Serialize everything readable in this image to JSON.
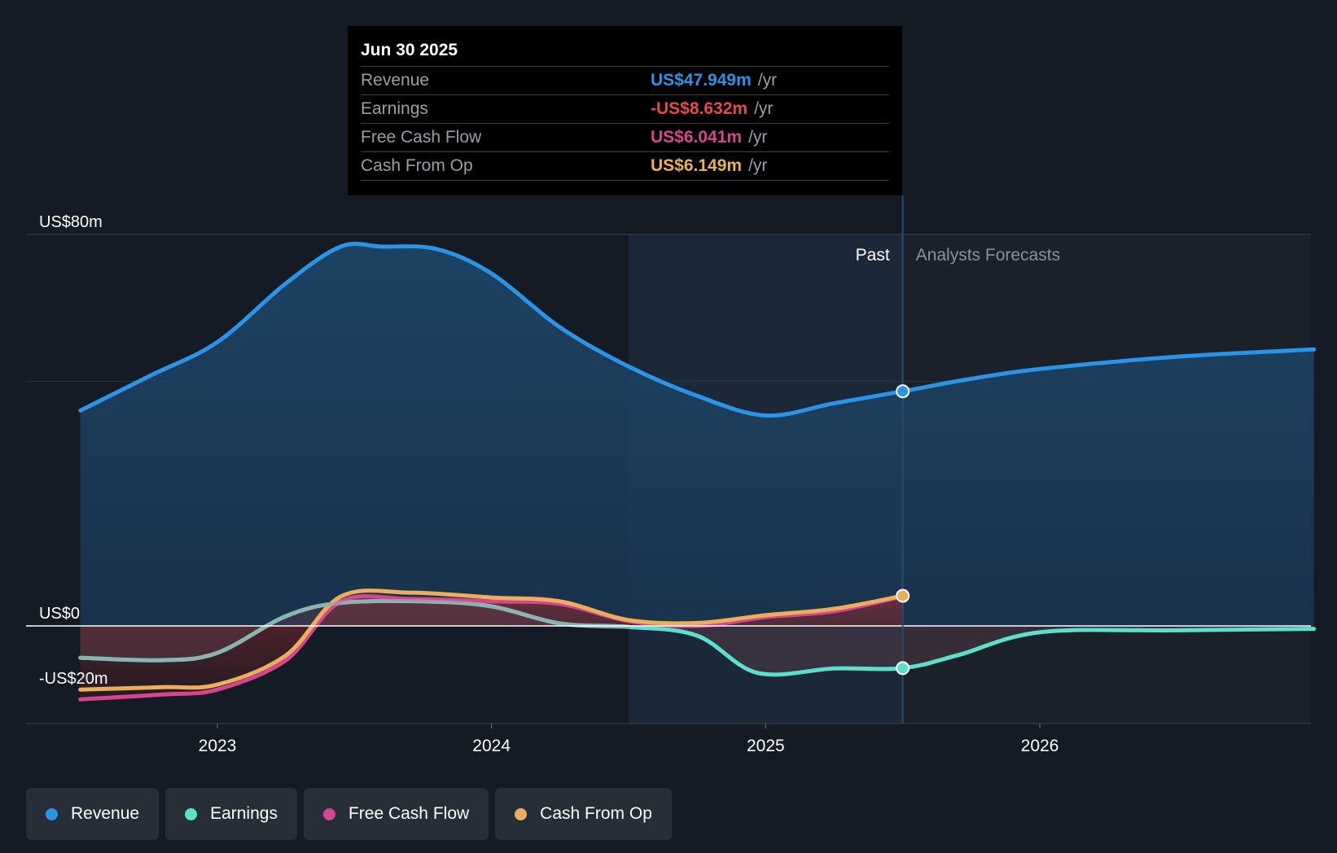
{
  "chart_data": {
    "type": "area",
    "y_axis_labels": [
      "US$80m",
      "US$0",
      "-US$20m"
    ],
    "ylim": [
      -20,
      80
    ],
    "x_ticks": [
      "2023",
      "2024",
      "2025",
      "2026"
    ],
    "x_tick_values": [
      2023.0,
      2024.0,
      2025.0,
      2026.0
    ],
    "past_label": "Past",
    "forecast_label": "Analysts Forecasts",
    "divider_x": 2025.5,
    "highlight_start_x": 2024.5,
    "series": [
      {
        "name": "Revenue",
        "color": "#2a95e6",
        "fill": "area",
        "points": [
          [
            2022.5,
            44
          ],
          [
            2022.75,
            51
          ],
          [
            2023.0,
            58
          ],
          [
            2023.25,
            70
          ],
          [
            2023.45,
            77.5
          ],
          [
            2023.6,
            77.5
          ],
          [
            2023.8,
            77
          ],
          [
            2024.0,
            72
          ],
          [
            2024.25,
            61
          ],
          [
            2024.5,
            53
          ],
          [
            2024.75,
            47
          ],
          [
            2025.0,
            43
          ],
          [
            2025.25,
            45.5
          ],
          [
            2025.5,
            47.949
          ]
        ],
        "forecast_points": [
          [
            2025.5,
            47.949
          ],
          [
            2025.75,
            50.5
          ],
          [
            2026.0,
            52.5
          ],
          [
            2026.5,
            55
          ],
          [
            2027.0,
            56.5
          ]
        ]
      },
      {
        "name": "Earnings",
        "color": "#5ce0cc",
        "fill": "none",
        "points": [
          [
            2022.5,
            -6.5
          ],
          [
            2022.8,
            -7
          ],
          [
            2023.0,
            -5.5
          ],
          [
            2023.25,
            2
          ],
          [
            2023.45,
            4.7
          ],
          [
            2023.75,
            5
          ],
          [
            2024.0,
            4
          ],
          [
            2024.25,
            0.5
          ],
          [
            2024.5,
            -0.2
          ],
          [
            2024.75,
            -2
          ],
          [
            2024.97,
            -9.6
          ],
          [
            2025.25,
            -8.7
          ],
          [
            2025.5,
            -8.632
          ]
        ],
        "forecast_points": [
          [
            2025.5,
            -8.632
          ],
          [
            2025.7,
            -6
          ],
          [
            2026.0,
            -1.3
          ],
          [
            2026.5,
            -0.9
          ],
          [
            2027.0,
            -0.6
          ]
        ]
      },
      {
        "name": "Free Cash Flow",
        "color": "#d6468e",
        "fill": "none",
        "points": [
          [
            2022.5,
            -15
          ],
          [
            2022.8,
            -14
          ],
          [
            2023.0,
            -13
          ],
          [
            2023.25,
            -7
          ],
          [
            2023.45,
            5
          ],
          [
            2023.7,
            5.5
          ],
          [
            2024.0,
            5
          ],
          [
            2024.25,
            4.5
          ],
          [
            2024.5,
            1
          ],
          [
            2024.75,
            0
          ],
          [
            2025.0,
            1.8
          ],
          [
            2025.25,
            3
          ],
          [
            2025.5,
            6.041
          ]
        ]
      },
      {
        "name": "Cash From Op",
        "color": "#eaaf5a",
        "fill": "none",
        "points": [
          [
            2022.5,
            -13
          ],
          [
            2022.8,
            -12.5
          ],
          [
            2023.0,
            -12
          ],
          [
            2023.25,
            -6
          ],
          [
            2023.45,
            6
          ],
          [
            2023.7,
            6.8
          ],
          [
            2024.0,
            5.8
          ],
          [
            2024.25,
            5
          ],
          [
            2024.5,
            1.2
          ],
          [
            2024.75,
            0.6
          ],
          [
            2025.0,
            2.2
          ],
          [
            2025.25,
            3.5
          ],
          [
            2025.5,
            6.149
          ]
        ]
      }
    ]
  },
  "tooltip": {
    "date": "Jun 30 2025",
    "rows": [
      {
        "label": "Revenue",
        "value": "US$47.949m",
        "unit": "/yr",
        "color": "#2a95e6"
      },
      {
        "label": "Earnings",
        "value": "-US$8.632m",
        "unit": "/yr",
        "color": "#e64a4a"
      },
      {
        "label": "Free Cash Flow",
        "value": "US$6.041m",
        "unit": "/yr",
        "color": "#d6468e"
      },
      {
        "label": "Cash From Op",
        "value": "US$6.149m",
        "unit": "/yr",
        "color": "#eaaf5a"
      }
    ]
  },
  "legend": [
    {
      "label": "Revenue",
      "color": "#2a95e6"
    },
    {
      "label": "Earnings",
      "color": "#5ce0cc"
    },
    {
      "label": "Free Cash Flow",
      "color": "#d6468e"
    },
    {
      "label": "Cash From Op",
      "color": "#eaaf5a"
    }
  ]
}
